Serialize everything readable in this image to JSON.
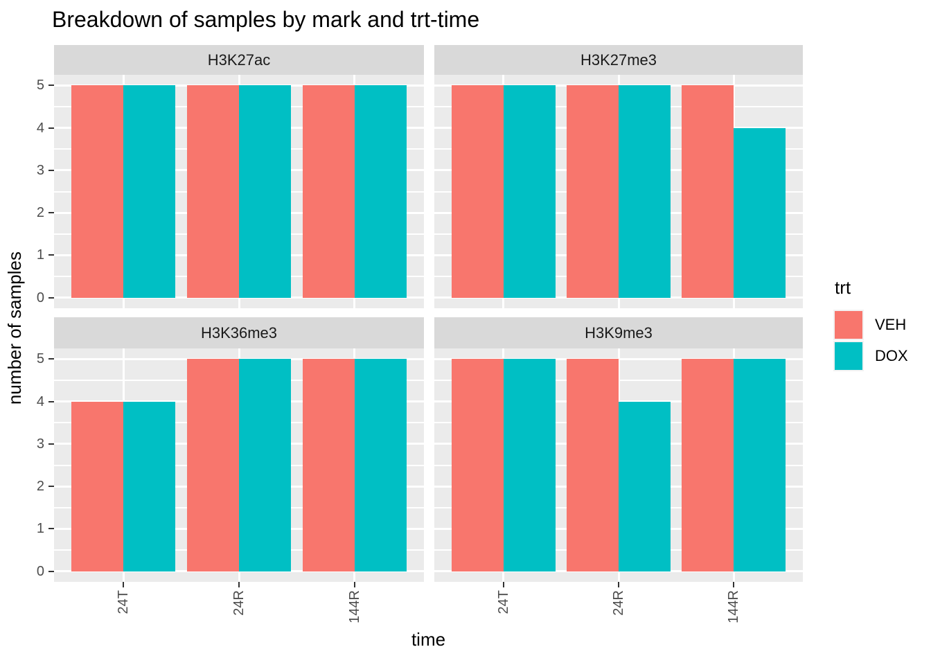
{
  "chart_data": {
    "type": "bar",
    "title": "Breakdown of samples by mark and trt-time",
    "xlabel": "time",
    "ylabel": "number of samples",
    "categories": [
      "24T",
      "24R",
      "144R"
    ],
    "facets": [
      {
        "name": "H3K27ac",
        "series": [
          {
            "name": "VEH",
            "values": [
              5,
              5,
              5
            ]
          },
          {
            "name": "DOX",
            "values": [
              5,
              5,
              5
            ]
          }
        ]
      },
      {
        "name": "H3K27me3",
        "series": [
          {
            "name": "VEH",
            "values": [
              5,
              5,
              5
            ]
          },
          {
            "name": "DOX",
            "values": [
              5,
              5,
              4
            ]
          }
        ]
      },
      {
        "name": "H3K36me3",
        "series": [
          {
            "name": "VEH",
            "values": [
              4,
              5,
              5
            ]
          },
          {
            "name": "DOX",
            "values": [
              4,
              5,
              5
            ]
          }
        ]
      },
      {
        "name": "H3K9me3",
        "series": [
          {
            "name": "VEH",
            "values": [
              5,
              5,
              5
            ]
          },
          {
            "name": "DOX",
            "values": [
              5,
              4,
              5
            ]
          }
        ]
      }
    ],
    "ylim": [
      0,
      5
    ],
    "yticks": [
      0,
      1,
      2,
      3,
      4,
      5
    ],
    "grid": true,
    "legend": {
      "title": "trt",
      "position": "right",
      "entries": [
        {
          "label": "VEH",
          "color": "#F8766D"
        },
        {
          "label": "DOX",
          "color": "#00BFC4"
        }
      ]
    }
  },
  "colors": {
    "veh": "#F8766D",
    "dox": "#00BFC4",
    "panel_background": "#EBEBEB",
    "strip_background": "#D9D9D9",
    "gridline": "#FFFFFF",
    "axis_text": "#4D4D4D",
    "tick_mark": "#333333",
    "legend_key_background": "#F2F2F2",
    "text": "#000000"
  }
}
